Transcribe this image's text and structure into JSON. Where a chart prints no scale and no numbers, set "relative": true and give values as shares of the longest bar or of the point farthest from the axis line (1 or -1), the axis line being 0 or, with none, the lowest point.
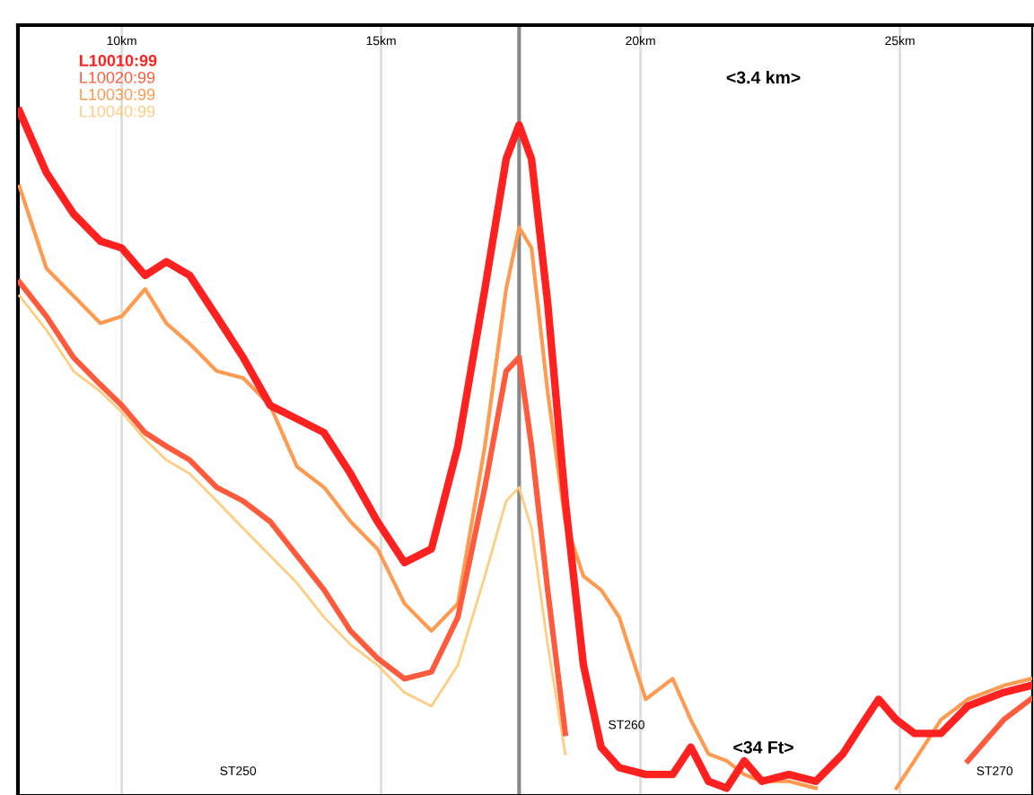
{
  "chart_data": {
    "type": "line",
    "relative": true,
    "x": [
      8.03,
      8.55,
      9.07,
      9.59,
      10.0,
      10.45,
      10.86,
      11.31,
      11.83,
      12.34,
      12.86,
      13.38,
      13.9,
      14.41,
      14.93,
      15.45,
      15.97,
      16.48,
      17.0,
      17.41,
      17.66,
      17.9,
      18.21,
      18.55,
      18.9,
      19.24,
      19.59,
      20.1,
      20.62,
      20.97,
      21.31,
      21.66,
      22.0,
      22.34,
      22.86,
      23.38,
      23.9,
      24.24,
      24.59,
      24.93,
      25.28,
      25.79,
      26.31,
      27.0,
      27.52
    ],
    "series": [
      {
        "name": "L10010:99",
        "color": "#ff2020",
        "values": [
          1.0,
          0.91,
          0.85,
          0.81,
          0.8,
          0.76,
          0.78,
          0.76,
          0.7,
          0.64,
          0.57,
          0.55,
          0.53,
          0.47,
          0.4,
          0.34,
          0.36,
          0.51,
          0.74,
          0.93,
          0.98,
          0.93,
          0.72,
          0.43,
          0.19,
          0.07,
          0.04,
          0.03,
          0.03,
          0.07,
          0.02,
          0.01,
          0.05,
          0.02,
          0.03,
          0.02,
          0.06,
          0.1,
          0.14,
          0.11,
          0.09,
          0.09,
          0.13,
          0.15,
          0.16
        ]
      },
      {
        "name": "L10020:99",
        "color": "#ff5a3c",
        "values": [
          0.75,
          0.7,
          0.64,
          0.6,
          0.57,
          0.53,
          0.51,
          0.49,
          0.45,
          0.43,
          0.4,
          0.35,
          0.3,
          0.24,
          0.2,
          0.17,
          0.18,
          0.26,
          0.45,
          0.62,
          0.64,
          0.51,
          0.3,
          0.09,
          null,
          null,
          null,
          null,
          null,
          null,
          null,
          null,
          null,
          null,
          null,
          null,
          null,
          null,
          null,
          null,
          null,
          null,
          0.05,
          0.11,
          0.14
        ]
      },
      {
        "name": "L10030:99",
        "color": "#ff9a50",
        "values": [
          0.89,
          0.77,
          0.73,
          0.69,
          0.7,
          0.74,
          0.69,
          0.66,
          0.62,
          0.61,
          0.57,
          0.48,
          0.45,
          0.4,
          0.36,
          0.28,
          0.24,
          0.28,
          0.51,
          0.74,
          0.83,
          0.8,
          0.59,
          0.4,
          0.32,
          0.3,
          0.26,
          0.14,
          0.17,
          0.11,
          0.06,
          0.05,
          0.03,
          0.02,
          0.02,
          0.01,
          null,
          null,
          null,
          0.01,
          0.05,
          0.11,
          0.14,
          0.16,
          0.17
        ]
      },
      {
        "name": "L10040:99",
        "color": "#ffcc80",
        "values": [
          0.73,
          0.68,
          0.62,
          0.59,
          0.56,
          0.52,
          0.49,
          0.47,
          0.43,
          0.39,
          0.35,
          0.31,
          0.26,
          0.22,
          0.19,
          0.15,
          0.13,
          0.19,
          0.32,
          0.43,
          0.45,
          0.39,
          0.22,
          0.06,
          null,
          null,
          null,
          null,
          null,
          null,
          null,
          null,
          null,
          null,
          null,
          null,
          null,
          null,
          null,
          null,
          null,
          null,
          null,
          null,
          null
        ]
      }
    ],
    "xlim": [
      8.0,
      27.55
    ],
    "xticks": [
      {
        "value": 10,
        "label": "10km"
      },
      {
        "value": 15,
        "label": "15km"
      },
      {
        "value": 20,
        "label": "20km"
      },
      {
        "value": 25,
        "label": "25km"
      }
    ],
    "ref_lines": [
      {
        "axis": "x",
        "value": 17.66,
        "color": "#888888"
      }
    ],
    "annotations": [
      "<3.4 km>",
      "<34 Ft>",
      "ST250",
      "ST260",
      "ST270"
    ],
    "grid": "x",
    "legend": "top left",
    "marker": "none",
    "line_style": "solid"
  }
}
